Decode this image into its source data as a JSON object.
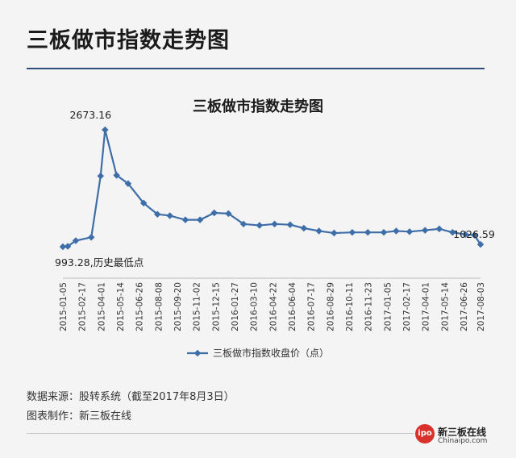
{
  "header": {
    "title": "三板做市指数走势图"
  },
  "chart_data": {
    "type": "line",
    "title": "三板做市指数走势图",
    "legend": {
      "label": "三板做市指数收盘价（点）",
      "position": "bottom"
    },
    "categories": [
      "2015-01-05",
      "2015-02-17",
      "2015-04-01",
      "2015-05-14",
      "2015-06-26",
      "2015-08-08",
      "2015-09-20",
      "2015-11-02",
      "2015-12-15",
      "2016-01-27",
      "2016-03-10",
      "2016-04-22",
      "2016-06-04",
      "2016-07-17",
      "2016-08-29",
      "2016-10-11",
      "2016-11-23",
      "2017-01-05",
      "2017-02-17",
      "2017-04-01",
      "2017-05-14",
      "2017-06-26",
      "2017-08-03"
    ],
    "series": [
      {
        "name": "三板做市指数收盘价（点）",
        "color": "#3e6ea8",
        "points": [
          {
            "date": "2015-01-05",
            "value": 993.28
          },
          {
            "date": "2015-01-16",
            "value": 1000
          },
          {
            "date": "2015-02-03",
            "value": 1080
          },
          {
            "date": "2015-03-10",
            "value": 1130
          },
          {
            "date": "2015-03-31",
            "value": 2010
          },
          {
            "date": "2015-04-10",
            "value": 2673.16
          },
          {
            "date": "2015-05-06",
            "value": 2020
          },
          {
            "date": "2015-06-01",
            "value": 1900
          },
          {
            "date": "2015-07-06",
            "value": 1620
          },
          {
            "date": "2015-08-06",
            "value": 1460
          },
          {
            "date": "2015-09-03",
            "value": 1440
          },
          {
            "date": "2015-10-08",
            "value": 1380
          },
          {
            "date": "2015-11-10",
            "value": 1380
          },
          {
            "date": "2015-12-12",
            "value": 1480
          },
          {
            "date": "2016-01-13",
            "value": 1470
          },
          {
            "date": "2016-02-16",
            "value": 1320
          },
          {
            "date": "2016-03-23",
            "value": 1300
          },
          {
            "date": "2016-04-26",
            "value": 1320
          },
          {
            "date": "2016-05-31",
            "value": 1310
          },
          {
            "date": "2016-07-01",
            "value": 1260
          },
          {
            "date": "2016-08-04",
            "value": 1220
          },
          {
            "date": "2016-09-07",
            "value": 1190
          },
          {
            "date": "2016-10-18",
            "value": 1200
          },
          {
            "date": "2016-11-22",
            "value": 1200
          },
          {
            "date": "2016-12-28",
            "value": 1200
          },
          {
            "date": "2017-01-25",
            "value": 1220
          },
          {
            "date": "2017-02-24",
            "value": 1210
          },
          {
            "date": "2017-03-31",
            "value": 1230
          },
          {
            "date": "2017-05-02",
            "value": 1250
          },
          {
            "date": "2017-06-01",
            "value": 1200
          },
          {
            "date": "2017-06-30",
            "value": 1170
          },
          {
            "date": "2017-07-20",
            "value": 1160
          },
          {
            "date": "2017-08-03",
            "value": 1026.59
          }
        ]
      }
    ],
    "annotations": [
      {
        "date": "2015-04-10",
        "value": 2673.16,
        "text": "2673.16"
      },
      {
        "date": "2015-01-05",
        "value": 993.28,
        "text": "993.28,历史最低点"
      },
      {
        "date": "2017-08-03",
        "value": 1026.59,
        "text": "1026.59"
      }
    ],
    "ylim": [
      600,
      2800
    ],
    "grid": false
  },
  "footer": {
    "source": "数据来源：股转系统（截至2017年8月3日）",
    "author": "图表制作：新三板在线",
    "logo_icon": "ipo",
    "logo_name": "新三板在线",
    "logo_url": "Chinaipo.com"
  }
}
